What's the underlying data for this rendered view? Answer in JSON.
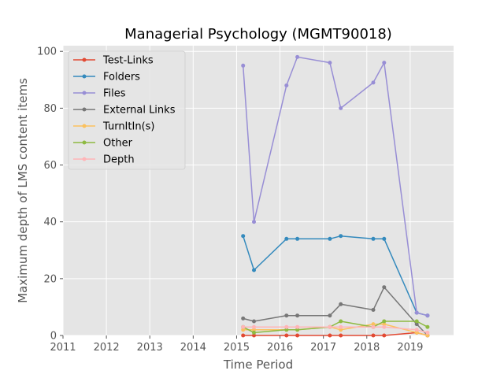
{
  "chart_data": {
    "type": "line",
    "title": "Managerial Psychology (MGMT90018)",
    "xlabel": "Time Period",
    "ylabel": "Maximum depth of LMS content items",
    "xlim": [
      2011.0,
      2020.0
    ],
    "ylim": [
      0,
      102
    ],
    "x_ticks": [
      2011,
      2012,
      2013,
      2014,
      2015,
      2016,
      2017,
      2018,
      2019
    ],
    "y_ticks": [
      0,
      20,
      40,
      60,
      80,
      100
    ],
    "grid": true,
    "legend_position": "upper-left",
    "x": [
      2015.15,
      2015.4,
      2016.15,
      2016.4,
      2017.15,
      2017.4,
      2018.15,
      2018.4,
      2019.15,
      2019.4
    ],
    "series": [
      {
        "name": "Test-Links",
        "color": "#e24a33",
        "values": [
          0,
          0,
          0,
          0,
          0,
          0,
          0,
          0,
          1,
          0
        ]
      },
      {
        "name": "Folders",
        "color": "#348abd",
        "values": [
          35,
          23,
          34,
          34,
          34,
          35,
          34,
          34,
          8,
          7
        ]
      },
      {
        "name": "Files",
        "color": "#988ed5",
        "values": [
          95,
          40,
          88,
          98,
          96,
          80,
          89,
          96,
          8,
          7
        ]
      },
      {
        "name": "External Links",
        "color": "#777777",
        "values": [
          6,
          5,
          7,
          7,
          7,
          11,
          9,
          17,
          4,
          0
        ]
      },
      {
        "name": "TurnItIn(s)",
        "color": "#fbc15e",
        "values": [
          2,
          2,
          2,
          2,
          3,
          2,
          4,
          4,
          1,
          0
        ]
      },
      {
        "name": "Other",
        "color": "#8eba42",
        "values": [
          3,
          1,
          2,
          2,
          3,
          5,
          3,
          5,
          5,
          3
        ]
      },
      {
        "name": "Depth",
        "color": "#ffb5b8",
        "values": [
          3,
          3,
          3,
          3,
          3,
          3,
          3,
          3,
          2,
          1
        ]
      }
    ]
  }
}
